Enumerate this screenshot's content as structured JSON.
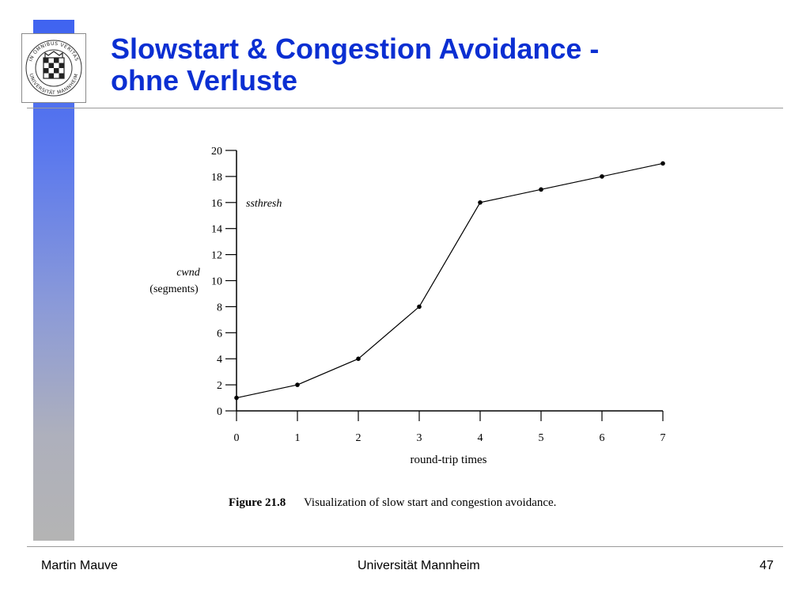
{
  "slide": {
    "title_line1": "Slowstart & Congestion Avoidance -",
    "title_line2": "ohne Verluste",
    "logo_text_top": "IN OMNIBUS VERITAS",
    "logo_text_bottom": "UNIVERSITÄT MANNHEIM"
  },
  "footer": {
    "author": "Martin Mauve",
    "institution": "Universität Mannheim",
    "page_number": "47"
  },
  "chart_data": {
    "type": "line",
    "x": [
      0,
      1,
      2,
      3,
      4,
      5,
      6,
      7
    ],
    "y": [
      1,
      2,
      4,
      8,
      16,
      17,
      18,
      19
    ],
    "xlabel": "round-trip times",
    "ylabel_line1": "cwnd",
    "ylabel_line2": "(segments)",
    "xlim": [
      0,
      7
    ],
    "ylim": [
      0,
      20
    ],
    "xticks": [
      "0",
      "1",
      "2",
      "3",
      "4",
      "5",
      "6",
      "7"
    ],
    "yticks": [
      "0",
      "2",
      "4",
      "6",
      "8",
      "10",
      "12",
      "14",
      "16",
      "18",
      "20"
    ],
    "annotation": {
      "text": "ssthresh",
      "y": 16
    },
    "caption_label": "Figure 21.8",
    "caption_text": "Visualization of slow start and congestion avoidance.",
    "grid": false,
    "colors": {
      "line": "#000000"
    }
  }
}
